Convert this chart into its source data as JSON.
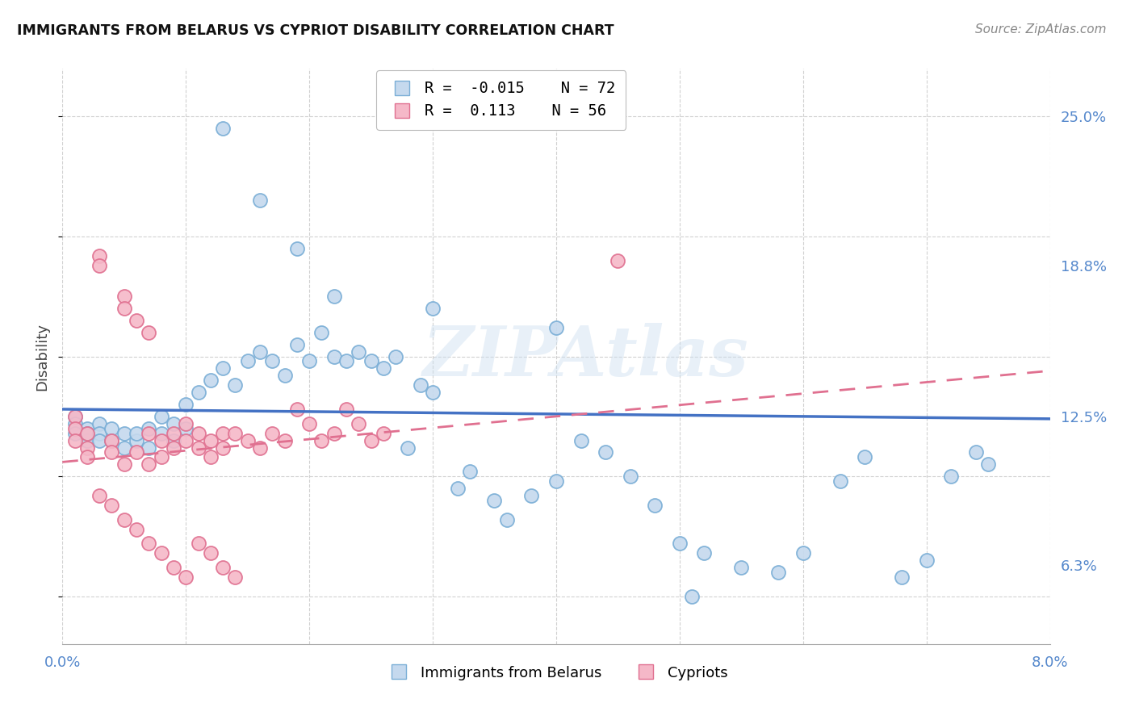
{
  "title": "IMMIGRANTS FROM BELARUS VS CYPRIOT DISABILITY CORRELATION CHART",
  "source": "Source: ZipAtlas.com",
  "ylabel": "Disability",
  "color_blue_fill": "#c5d9ee",
  "color_blue_edge": "#7aaed6",
  "color_pink_fill": "#f5b8c8",
  "color_pink_edge": "#e07090",
  "color_blue_line": "#4472c4",
  "color_pink_line": "#e07090",
  "watermark": "ZIPAtlas",
  "R_blue": -0.015,
  "N_blue": 72,
  "R_pink": 0.113,
  "N_pink": 56,
  "xlim": [
    0.0,
    0.08
  ],
  "ylim": [
    0.03,
    0.27
  ],
  "ytick_positions": [
    0.063,
    0.125,
    0.188,
    0.25
  ],
  "yticklabels": [
    "6.3%",
    "12.5%",
    "18.8%",
    "25.0%"
  ],
  "xtick_positions": [
    0.0,
    0.01,
    0.02,
    0.03,
    0.04,
    0.05,
    0.06,
    0.07,
    0.08
  ],
  "xticklabels": [
    "0.0%",
    "",
    "",
    "",
    "",
    "",
    "",
    "",
    "8.0%"
  ],
  "legend_label_blue": "Immigrants from Belarus",
  "legend_label_pink": "Cypriots",
  "blue_x": [
    0.001,
    0.001,
    0.001,
    0.002,
    0.002,
    0.002,
    0.003,
    0.003,
    0.003,
    0.004,
    0.004,
    0.005,
    0.005,
    0.006,
    0.006,
    0.007,
    0.007,
    0.008,
    0.008,
    0.009,
    0.009,
    0.01,
    0.01,
    0.011,
    0.012,
    0.013,
    0.014,
    0.015,
    0.016,
    0.017,
    0.018,
    0.019,
    0.02,
    0.021,
    0.022,
    0.023,
    0.024,
    0.025,
    0.026,
    0.027,
    0.028,
    0.029,
    0.03,
    0.032,
    0.033,
    0.035,
    0.036,
    0.038,
    0.04,
    0.042,
    0.044,
    0.046,
    0.048,
    0.05,
    0.052,
    0.055,
    0.058,
    0.06,
    0.063,
    0.065,
    0.068,
    0.07,
    0.072,
    0.074,
    0.013,
    0.016,
    0.019,
    0.022,
    0.03,
    0.04,
    0.051,
    0.075
  ],
  "blue_y": [
    0.125,
    0.122,
    0.118,
    0.12,
    0.115,
    0.118,
    0.122,
    0.118,
    0.115,
    0.12,
    0.115,
    0.118,
    0.112,
    0.115,
    0.118,
    0.12,
    0.112,
    0.125,
    0.118,
    0.122,
    0.115,
    0.13,
    0.12,
    0.135,
    0.14,
    0.145,
    0.138,
    0.148,
    0.152,
    0.148,
    0.142,
    0.155,
    0.148,
    0.16,
    0.15,
    0.148,
    0.152,
    0.148,
    0.145,
    0.15,
    0.112,
    0.138,
    0.135,
    0.095,
    0.102,
    0.09,
    0.082,
    0.092,
    0.098,
    0.115,
    0.11,
    0.1,
    0.088,
    0.072,
    0.068,
    0.062,
    0.06,
    0.068,
    0.098,
    0.108,
    0.058,
    0.065,
    0.1,
    0.11,
    0.245,
    0.215,
    0.195,
    0.175,
    0.17,
    0.162,
    0.05,
    0.105
  ],
  "pink_x": [
    0.001,
    0.001,
    0.001,
    0.002,
    0.002,
    0.002,
    0.003,
    0.003,
    0.004,
    0.004,
    0.005,
    0.005,
    0.005,
    0.006,
    0.006,
    0.007,
    0.007,
    0.007,
    0.008,
    0.008,
    0.009,
    0.009,
    0.01,
    0.01,
    0.011,
    0.011,
    0.012,
    0.012,
    0.013,
    0.013,
    0.014,
    0.015,
    0.016,
    0.017,
    0.018,
    0.019,
    0.02,
    0.021,
    0.022,
    0.023,
    0.024,
    0.025,
    0.026,
    0.045,
    0.003,
    0.004,
    0.005,
    0.006,
    0.007,
    0.008,
    0.009,
    0.01,
    0.011,
    0.012,
    0.013,
    0.014
  ],
  "pink_y": [
    0.125,
    0.12,
    0.115,
    0.118,
    0.112,
    0.108,
    0.192,
    0.188,
    0.115,
    0.11,
    0.175,
    0.17,
    0.105,
    0.165,
    0.11,
    0.16,
    0.118,
    0.105,
    0.115,
    0.108,
    0.118,
    0.112,
    0.122,
    0.115,
    0.118,
    0.112,
    0.115,
    0.108,
    0.118,
    0.112,
    0.118,
    0.115,
    0.112,
    0.118,
    0.115,
    0.128,
    0.122,
    0.115,
    0.118,
    0.128,
    0.122,
    0.115,
    0.118,
    0.19,
    0.092,
    0.088,
    0.082,
    0.078,
    0.072,
    0.068,
    0.062,
    0.058,
    0.072,
    0.068,
    0.062,
    0.058
  ],
  "blue_line_x": [
    0.0,
    0.08
  ],
  "blue_line_y": [
    0.128,
    0.124
  ],
  "pink_line_x": [
    0.0,
    0.08
  ],
  "pink_line_y": [
    0.106,
    0.144
  ]
}
